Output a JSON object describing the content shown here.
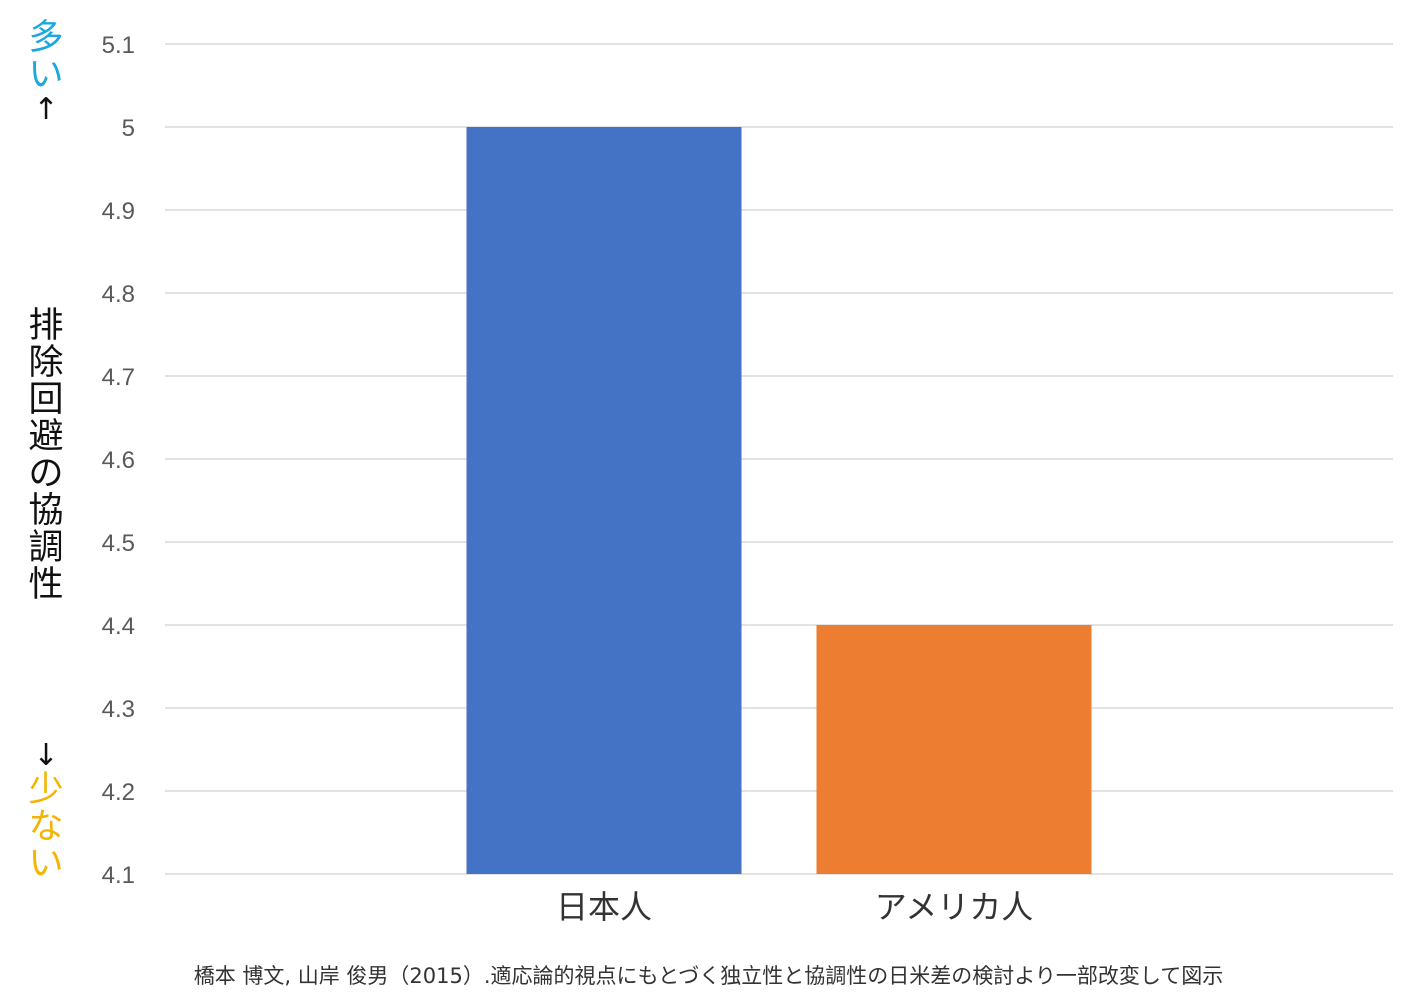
{
  "colors": {
    "japan": "#4472C4",
    "america": "#ED7D31",
    "grid": "#D9D9D9",
    "tick_text": "#595959",
    "more_label": "#1BA7E0",
    "less_label": "#F5B400",
    "axis_label": "#111111"
  },
  "y_axis": {
    "more_label": "多い",
    "up_arrow": "↑",
    "title": "排除回避の協調性",
    "down_arrow": "↓",
    "less_label": "少ない"
  },
  "caption": "橋本 博文, 山岸 俊男（2015）.適応論的視点にもとづく独立性と協調性の日米差の検討より一部改変して図示",
  "chart_data": {
    "type": "bar",
    "categories": [
      "日本人",
      "アメリカ人"
    ],
    "values": [
      5.0,
      4.4
    ],
    "ylim": [
      4.1,
      5.1
    ],
    "yticks": [
      "5.1",
      "5",
      "4.9",
      "4.8",
      "4.7",
      "4.6",
      "4.5",
      "4.4",
      "4.3",
      "4.2",
      "4.1"
    ],
    "grid": true,
    "legend": "none"
  }
}
